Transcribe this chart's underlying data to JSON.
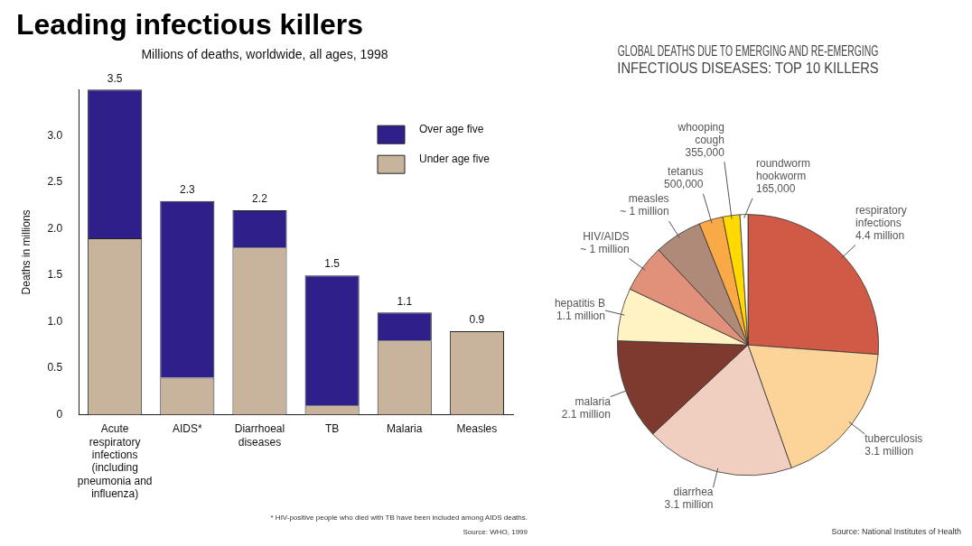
{
  "chart_data": [
    {
      "type": "bar",
      "title": "Leading infectious killers",
      "subtitle": "Millions of deaths, worldwide, all ages, 1998",
      "ylabel": "Deaths in millions",
      "categories": [
        "Acute respiratory infections (including pneumonia and influenza)",
        "AIDS*",
        "Diarrhoeal diseases",
        "TB",
        "Malaria",
        "Measles"
      ],
      "stacked": true,
      "series": [
        {
          "name": "Under age five",
          "color": "#c8b49c",
          "values": [
            1.9,
            0.4,
            1.8,
            0.1,
            0.8,
            0.9
          ]
        },
        {
          "name": "Over age five",
          "color": "#2e1f8a",
          "values": [
            1.6,
            1.9,
            0.4,
            1.4,
            0.3,
            null
          ]
        }
      ],
      "totals": [
        "3.5",
        "2.3",
        "2.2",
        "1.5",
        "1.1",
        "0.9"
      ],
      "ylim": [
        0,
        3.5
      ],
      "yticks": [
        0,
        0.5,
        {
          "value": 1,
          "label": "1.0"
        },
        1.5,
        {
          "value": 2,
          "label": "2.0"
        },
        2.5,
        {
          "value": 3,
          "label": "3.0"
        }
      ],
      "grid": false,
      "legend": "top right",
      "annotations": [
        "* HIV-positive people who died with TB have been included among AIDS deaths.",
        "Source: WHO, 1999"
      ]
    },
    {
      "type": "pie",
      "title": "GLOBAL DEATHS DUE TO EMERGING AND RE-EMERGING INFECTIOUS DISEASES: TOP 10 KILLERS",
      "categories": [
        "respiratory infections",
        "tuberculosis",
        "diarrhea",
        "malaria",
        "hepatitis B",
        "HIV/AIDS",
        "measles",
        "tetanus",
        "whooping cough",
        "roundworm hookworm"
      ],
      "values": [
        4400000,
        3100000,
        3100000,
        2100000,
        1100000,
        1000000,
        1000000,
        500000,
        355000,
        165000
      ],
      "value_labels": [
        "4.4 million",
        "3.1 million",
        "3.1 million",
        "2.1 million",
        "1.1 million",
        "~ 1 million",
        "~ 1 million",
        "500,000",
        "355,000",
        "165,000"
      ],
      "colors": [
        "#d05a45",
        "#fcd49a",
        "#f1cfc0",
        "#7f3a30",
        "#fff3c4",
        "#e1907a",
        "#b08a78",
        "#f9a945",
        "#ffd900",
        "#ffffff"
      ],
      "legend": false,
      "annotations": [
        "Source: National Institutes of Health"
      ]
    }
  ]
}
